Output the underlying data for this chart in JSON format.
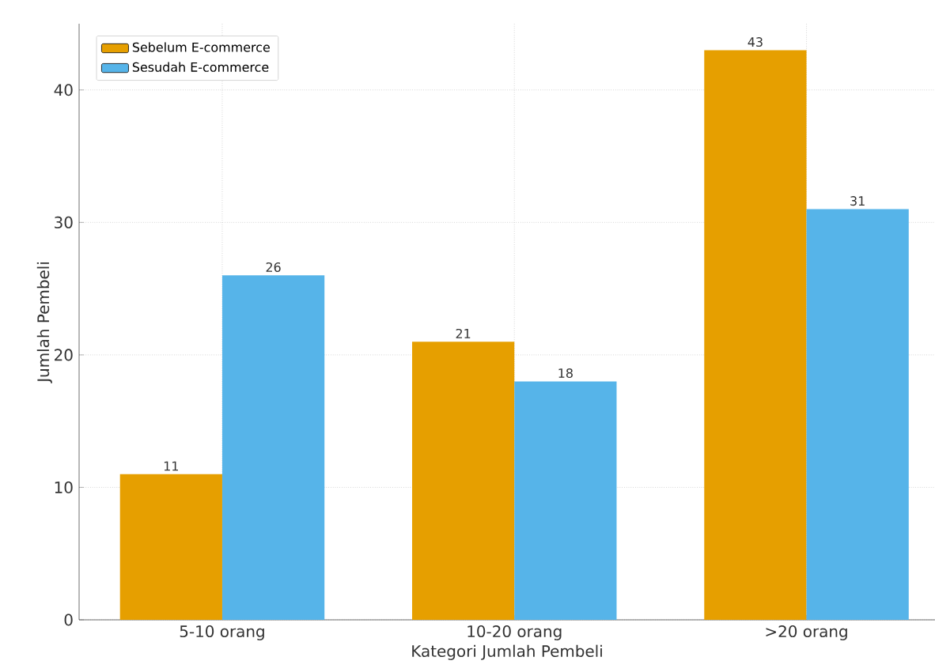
{
  "chart_data": {
    "type": "bar",
    "xlabel": "Kategori Jumlah Pembeli",
    "ylabel": "Jumlah Pembeli",
    "categories": [
      "5-10 orang",
      "10-20 orang",
      ">20 orang"
    ],
    "series": [
      {
        "name": "Sebelum E-commerce",
        "color": "#e69f00",
        "values": [
          11,
          21,
          43
        ]
      },
      {
        "name": "Sesudah E-commerce",
        "color": "#56b4e9",
        "values": [
          26,
          18,
          31
        ]
      }
    ],
    "ylim": [
      0,
      45
    ],
    "yticks": [
      0,
      10,
      20,
      30,
      40
    ],
    "grid": true,
    "legend": "top left",
    "data_labels": true
  }
}
